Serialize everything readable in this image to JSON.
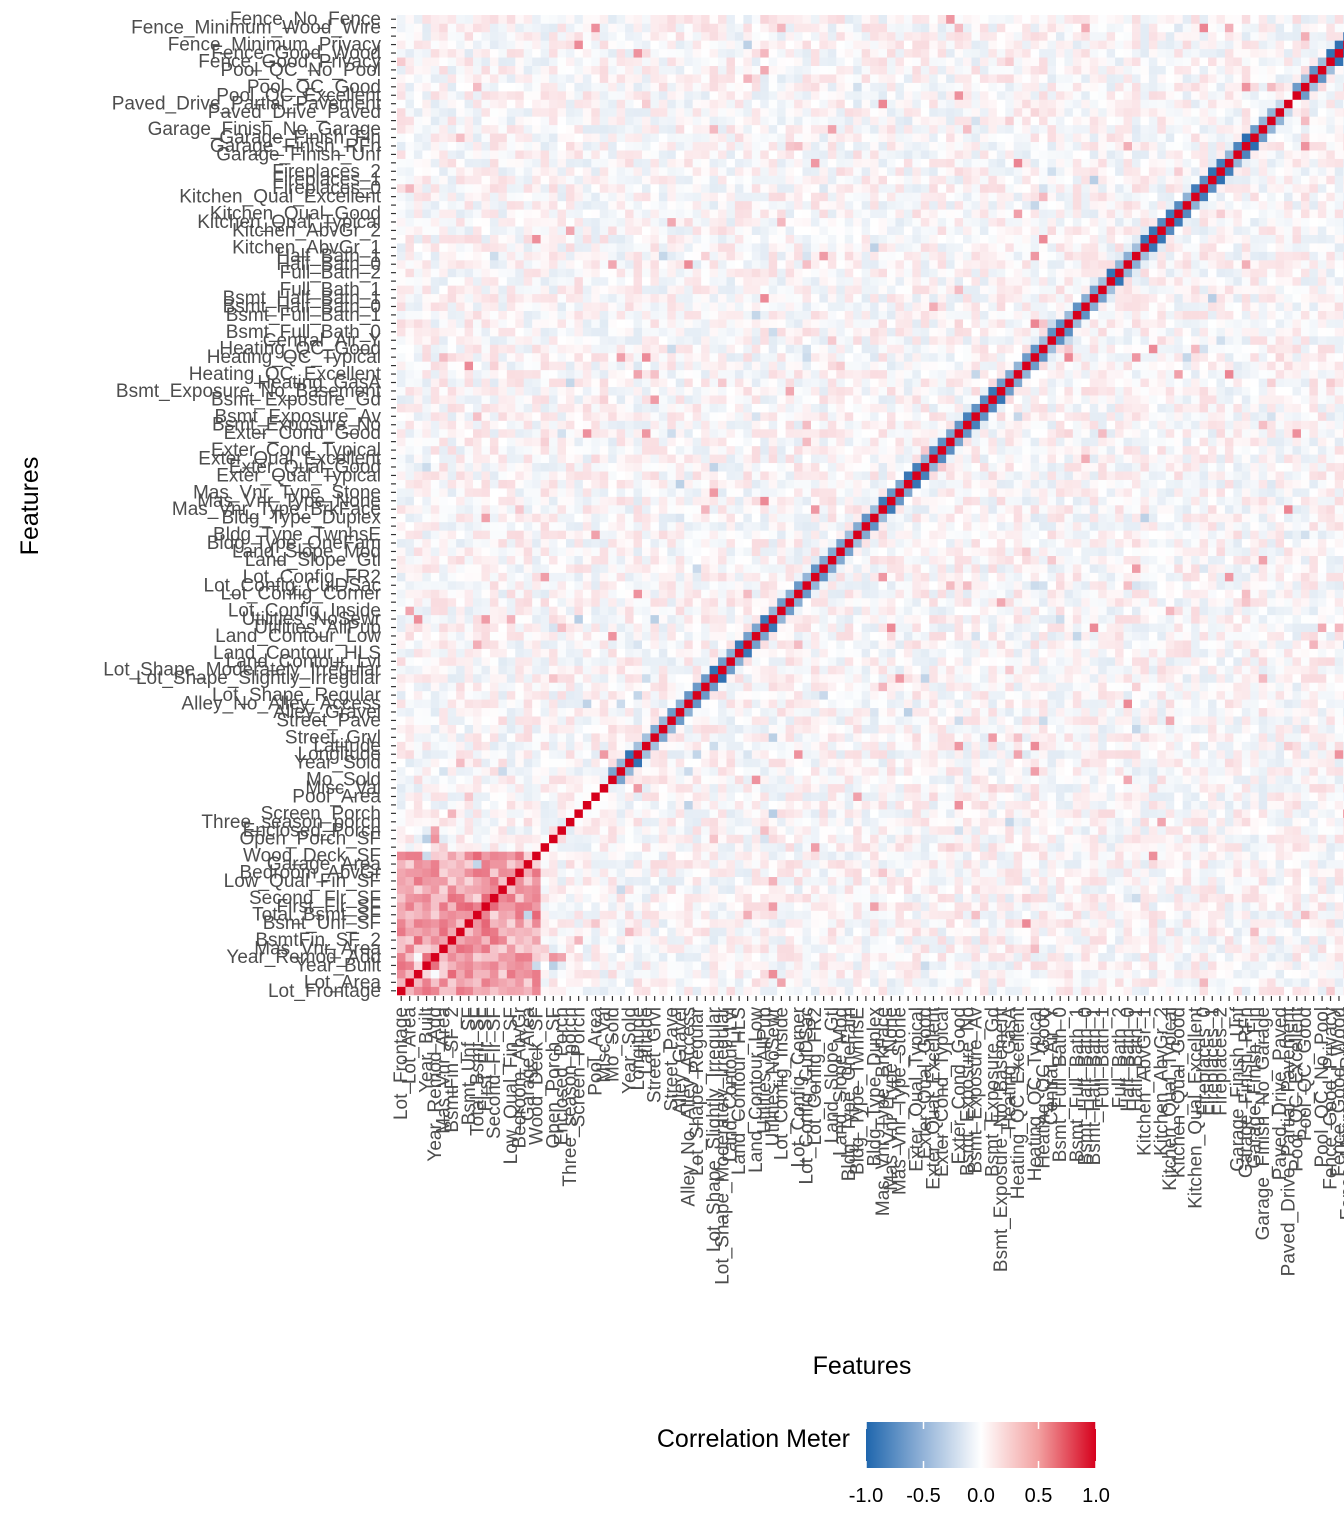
{
  "chart_data": {
    "type": "heatmap",
    "title": "",
    "xlabel": "Features",
    "ylabel": "Features",
    "color_scale": {
      "low": "#2166ac",
      "mid": "#ffffff",
      "high": "#d6001c",
      "limits": [
        -1.0,
        1.0
      ],
      "legend_title": "Correlation Meter",
      "legend_ticks": [
        "-1.0",
        "-0.5",
        "0.0",
        "0.5",
        "1.0"
      ],
      "legend_tick_values": [
        -1.0,
        -0.5,
        0.0,
        0.5,
        1.0
      ]
    },
    "feature_count": 116,
    "visible_labels": [
      "Lot_Frontage",
      "Lot_Area",
      "Year_Built",
      "Year_Remod_Add",
      "Mas_Vnr_Area",
      "BsmtFin_SF_2",
      "Bsmt_Unf_SF",
      "Total_Bsmt_SF",
      "First_Flr_SF",
      "Second_Flr_SF",
      "Low_Qual_Fin_SF",
      "Bedroom_AbvGr",
      "Garage_Area",
      "Wood_Deck_SF",
      "Open_Porch_SF",
      "Enclosed_Porch",
      "Three_season_porch",
      "Screen_Porch",
      "Pool_Area",
      "Misc_Val",
      "Mo_Sold",
      "Year_Sold",
      "Longitude",
      "Latitude",
      "Street_Grvl",
      "Street_Pave",
      "Alley_Gravel",
      "Alley_No_Alley_Access",
      "Lot_Shape_Regular",
      "Lot_Shape_Slightly_Irregular",
      "Lot_Shape_Moderately_Irregular",
      "Land_Contour_Lvl",
      "Land_Contour_HLS",
      "Land_Contour_Low",
      "Utilities_AllPub",
      "Utilities_NoSewr",
      "Lot_Config_Inside",
      "Lot_Config_Corner",
      "Lot_Config_CulDSac",
      "Lot_Config_FR2",
      "Land_Slope_Gtl",
      "Land_Slope_Mod",
      "Bldg_Type_OneFam",
      "Bldg_Type_TwnhsE",
      "Bldg_Type_Duplex",
      "Mas_Vnr_Type_BrkFace",
      "Mas_Vnr_Type_None",
      "Mas_Vnr_Type_Stone",
      "Exter_Qual_Typical",
      "Exter_Qual_Good",
      "Exter_Qual_Excellent",
      "Exter_Cond_Typical",
      "Exter_Cond_Good",
      "Bsmt_Exposure_No",
      "Bsmt_Exposure_Av",
      "Bsmt_Exposure_Gd",
      "Bsmt_Exposure_No_Basement",
      "Heating_GasA",
      "Heating_QC_Excellent",
      "Heating_QC_Typical",
      "Heating_QC_Good",
      "Central_Air_Y",
      "Bsmt_Full_Bath_0",
      "Bsmt_Full_Bath_1",
      "Bsmt_Half_Bath_0",
      "Bsmt_Half_Bath_1",
      "Full_Bath_1",
      "Full_Bath_2",
      "Half_Bath_0",
      "Half_Bath_1",
      "Kitchen_AbvGr_1",
      "Kitchen_AbvGr_2",
      "Kitchen_Qual_Typical",
      "Kitchen_Qual_Good",
      "Kitchen_Qual_Excellent",
      "Fireplaces_0",
      "Fireplaces_1",
      "Fireplaces_2",
      "Garage_Finish_Unf",
      "Garage_Finish_RFn",
      "Garage_Finish_Fin",
      "Garage_Finish_No_Garage",
      "Paved_Drive_Paved",
      "Paved_Drive_Partial_Pavement",
      "Pool_QC_Excellent",
      "Pool_QC_Good",
      "Pool_QC_No_Pool",
      "Fence_Good_Privacy",
      "Fence_Good_Wood",
      "Fence_Minimum_Privacy",
      "Fence_Minimum_Wood_Wire",
      "Fence_No_Fence"
    ]
  }
}
